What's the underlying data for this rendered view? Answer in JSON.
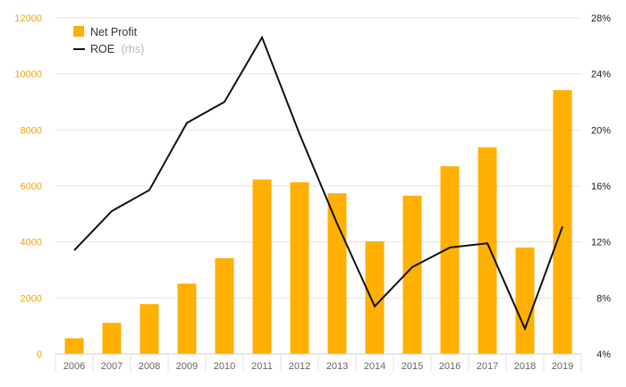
{
  "chart_data": {
    "type": "bar",
    "categories": [
      "2006",
      "2007",
      "2008",
      "2009",
      "2010",
      "2011",
      "2012",
      "2013",
      "2014",
      "2015",
      "2016",
      "2017",
      "2018",
      "2019"
    ],
    "series": [
      {
        "name": "Net Profit",
        "type": "bar",
        "axis": "left",
        "color": "#ffb000",
        "values": [
          560,
          1110,
          1780,
          2510,
          3420,
          6230,
          6130,
          5740,
          4020,
          5650,
          6700,
          7380,
          3800,
          9420
        ]
      },
      {
        "name": "ROE",
        "name_suffix": "(rhs)",
        "type": "line",
        "axis": "right",
        "color": "#111111",
        "values": [
          11.4,
          14.2,
          15.7,
          20.5,
          22.0,
          26.6,
          19.7,
          13.3,
          7.4,
          10.2,
          11.6,
          11.9,
          5.8,
          13.1
        ]
      }
    ],
    "y_left": {
      "ylim": [
        0,
        12000
      ],
      "ticks": [
        "0",
        "2000",
        "4000",
        "6000",
        "8000",
        "10000",
        "12000"
      ],
      "color": "#f0a500"
    },
    "y_right": {
      "ylim": [
        4,
        28
      ],
      "ticks": [
        "4%",
        "8%",
        "12%",
        "16%",
        "20%",
        "24%",
        "28%"
      ],
      "color": "#222222"
    },
    "grid": true,
    "legend_position": "top-left"
  }
}
